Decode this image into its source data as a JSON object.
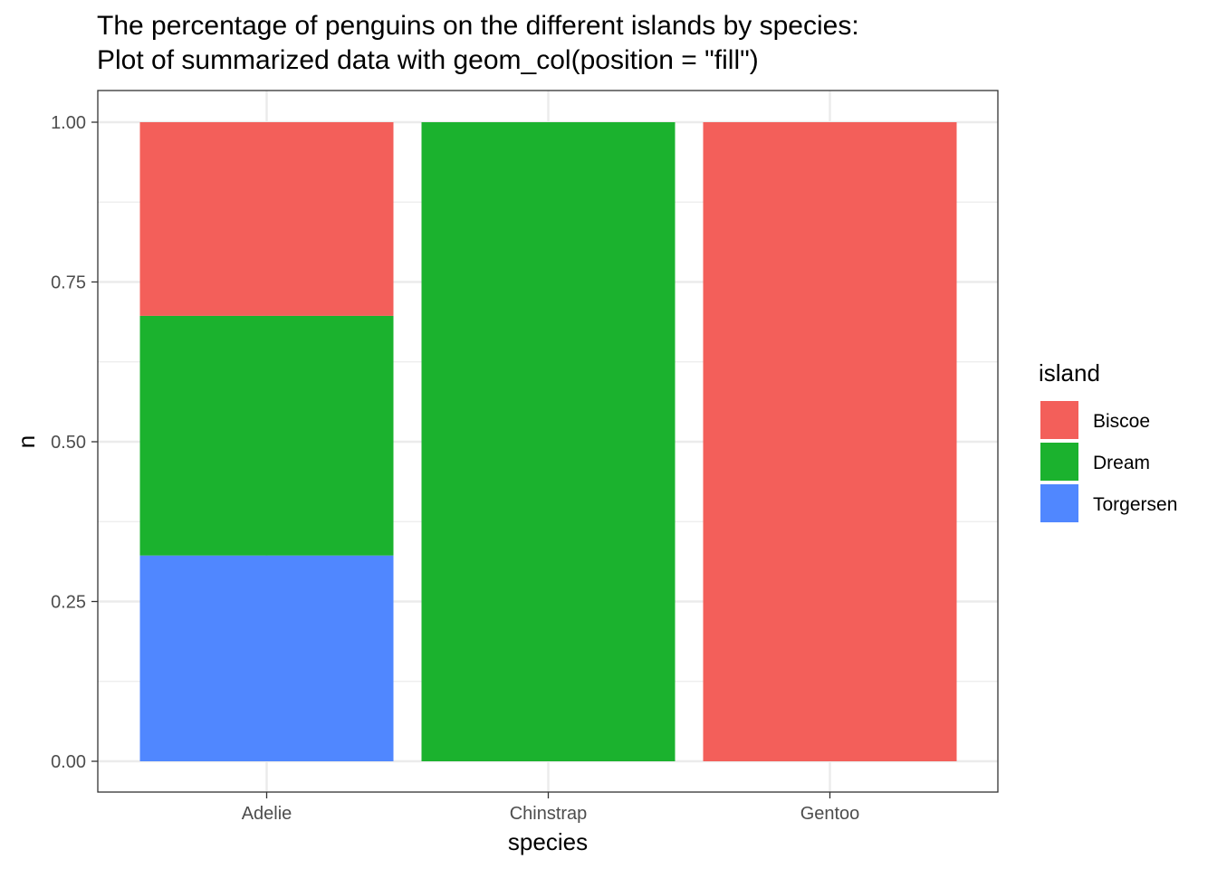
{
  "chart_data": {
    "type": "bar",
    "stacked": true,
    "position": "fill",
    "title": "The percentage of penguins on the different islands by species:",
    "subtitle": "Plot of summarized data with geom_col(position = \"fill\")",
    "xlabel": "species",
    "ylabel": "n",
    "categories": [
      "Adelie",
      "Chinstrap",
      "Gentoo"
    ],
    "series": [
      {
        "name": "Biscoe",
        "color": "#F35F5A",
        "values": [
          0.303,
          0.0,
          1.0
        ]
      },
      {
        "name": "Dream",
        "color": "#1BB22E",
        "values": [
          0.375,
          1.0,
          0.0
        ]
      },
      {
        "name": "Torgersen",
        "color": "#5087FF",
        "values": [
          0.322,
          0.0,
          0.0
        ]
      }
    ],
    "stack_order_bottom_to_top": [
      "Torgersen",
      "Dream",
      "Biscoe"
    ],
    "ylim": [
      0,
      1
    ],
    "yticks": [
      "0.00",
      "0.25",
      "0.50",
      "0.75",
      "1.00"
    ],
    "ytick_values": [
      0,
      0.25,
      0.5,
      0.75,
      1.0
    ],
    "grid": true,
    "legend": {
      "title": "island",
      "position": "right",
      "entries": [
        "Biscoe",
        "Dream",
        "Torgersen"
      ]
    }
  }
}
